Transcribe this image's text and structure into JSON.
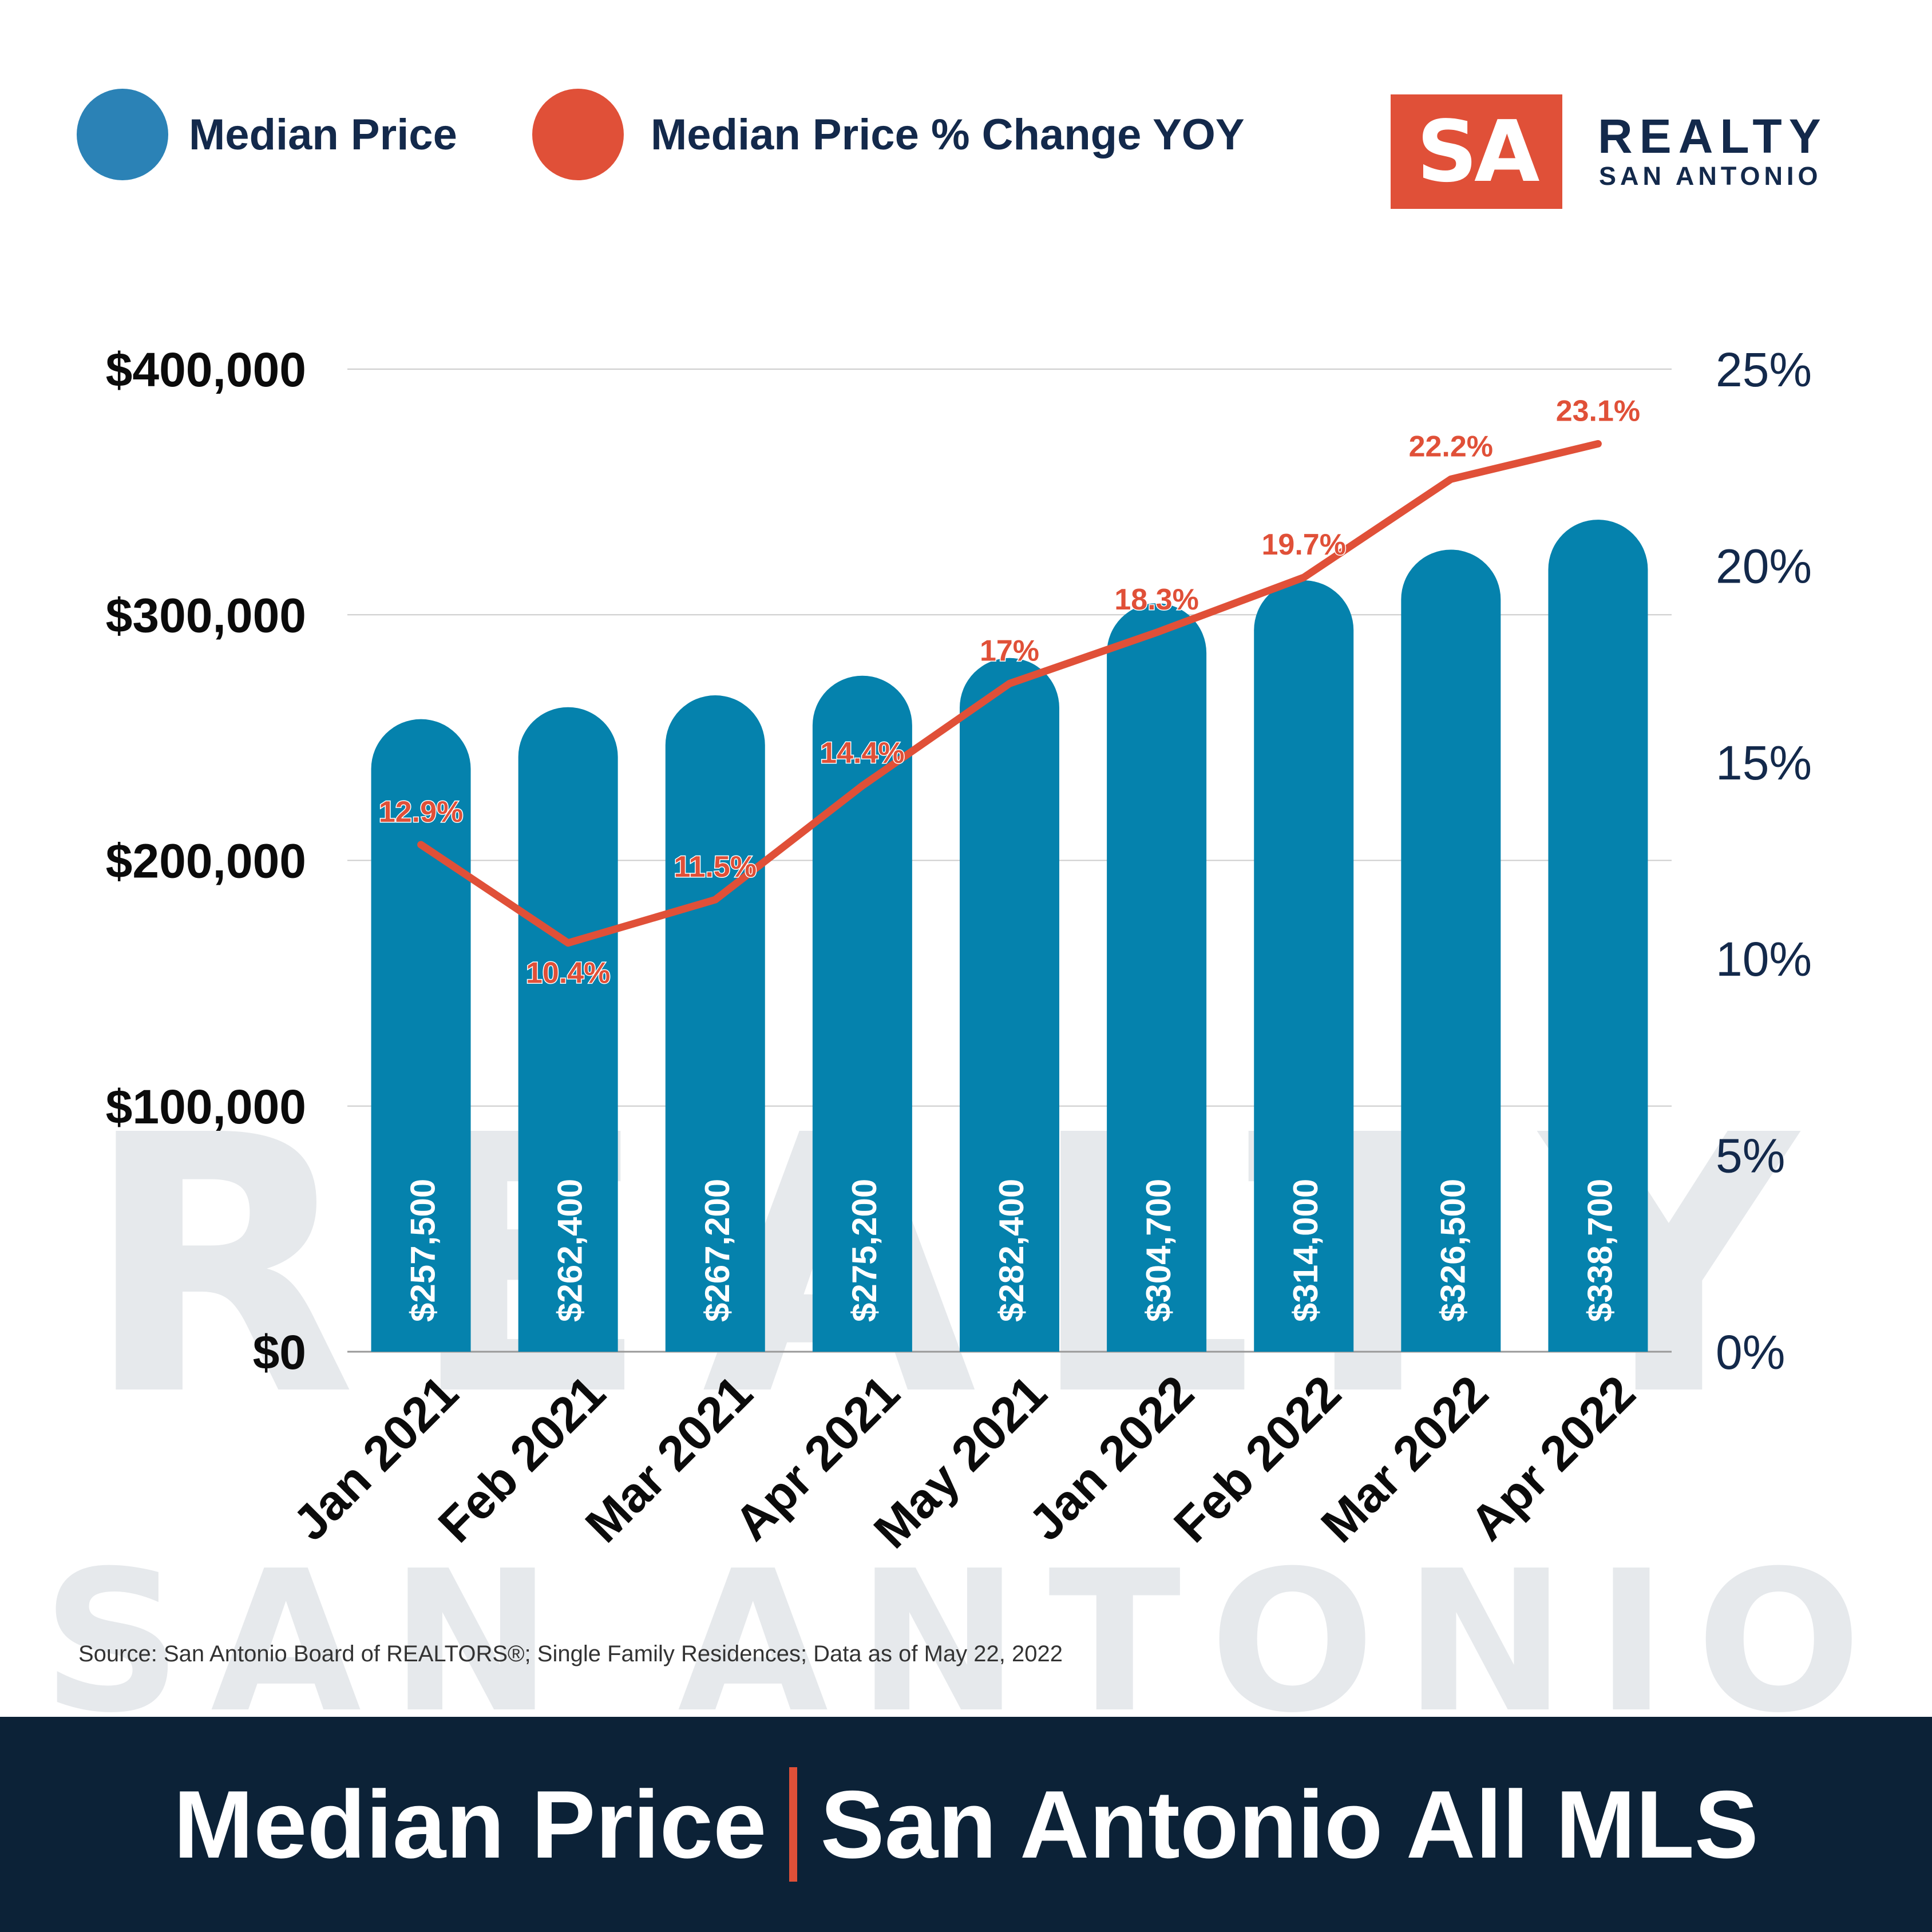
{
  "legend": {
    "bars_label": "Median Price",
    "line_label": "Median Price % Change YOY"
  },
  "logo": {
    "mark": "SA",
    "line1": "REALTY",
    "line2": "SAN ANTONIO"
  },
  "watermark": {
    "line1": "REALTY",
    "line2": "SAN ANTONIO"
  },
  "source": "Source: San Antonio Board of REALTORS®; Single Family Residences; Data as of May 22, 2022",
  "footer": {
    "left": "Median Price",
    "right": "San Antonio All MLS"
  },
  "colors": {
    "bar": "#0582ad",
    "line": "#e05038",
    "navy": "#0c2237",
    "gridline": "#cccccc",
    "legend_blue": "#2b82b6"
  },
  "chart_data": {
    "type": "bar",
    "categories": [
      "Jan 2021",
      "Feb 2021",
      "Mar 2021",
      "Apr 2021",
      "May 2021",
      "Jan 2022",
      "Feb 2022",
      "Mar 2022",
      "Apr 2022"
    ],
    "series": [
      {
        "name": "Median Price",
        "type": "bar",
        "axis": "left",
        "values": [
          257500,
          262400,
          267200,
          275200,
          282400,
          304700,
          314000,
          326500,
          338700
        ],
        "labels": [
          "$257,500",
          "$262,400",
          "$267,200",
          "$275,200",
          "$282,400",
          "$304,700",
          "$314,000",
          "$326,500",
          "$338,700"
        ]
      },
      {
        "name": "Median Price % Change YOY",
        "type": "line",
        "axis": "right",
        "values": [
          12.9,
          10.4,
          11.5,
          14.4,
          17,
          18.3,
          19.7,
          22.2,
          23.1
        ],
        "labels": [
          "12.9%",
          "10.4%",
          "11.5%",
          "14.4%",
          "17%",
          "18.3%",
          "19.7%",
          "22.2%",
          "23.1%"
        ]
      }
    ],
    "y_left": {
      "lim": [
        0,
        400000
      ],
      "ticks": [
        0,
        100000,
        200000,
        300000,
        400000
      ],
      "tick_labels": [
        "$0",
        "$100,000",
        "$200,000",
        "$300,000",
        "$400,000"
      ]
    },
    "y_right": {
      "lim": [
        0,
        25
      ],
      "ticks": [
        0,
        5,
        10,
        15,
        20,
        25
      ],
      "tick_labels": [
        "0%",
        "5%",
        "10%",
        "15%",
        "20%",
        "25%"
      ]
    },
    "grid": true,
    "legend": "top-left"
  }
}
